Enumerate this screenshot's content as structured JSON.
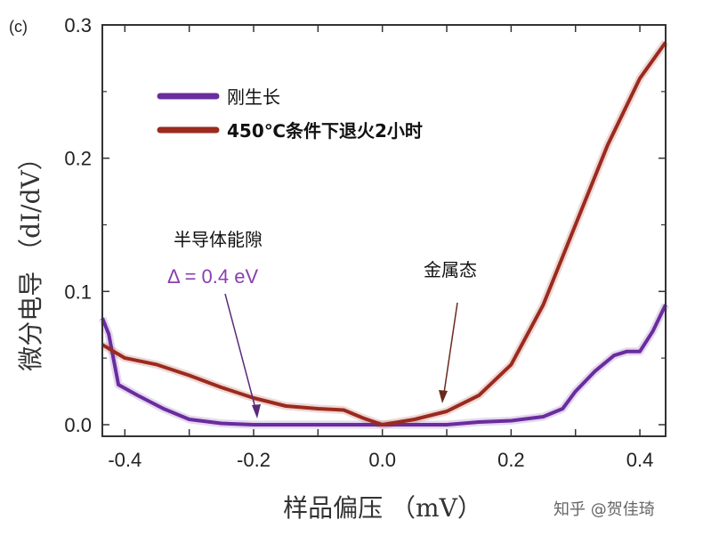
{
  "panel_label": "(c)",
  "watermark": "知乎 @贺佳琦",
  "chart_data": {
    "type": "line",
    "xlabel": "样品偏压 （mV）",
    "ylabel": "微分电导 （dI/dV）",
    "xlim": [
      -0.435,
      0.44
    ],
    "ylim": [
      -0.0087,
      0.3
    ],
    "xticks": [
      "-0.4",
      "-0.2",
      "0.0",
      "0.2",
      "0.4"
    ],
    "xtick_values": [
      -0.4,
      -0.2,
      0.0,
      0.2,
      0.4
    ],
    "yticks": [
      "0.0",
      "0.1",
      "0.2",
      "0.3"
    ],
    "ytick_values": [
      0.0,
      0.1,
      0.2,
      0.3
    ],
    "grid": false,
    "legend_placement": "top-left",
    "series": [
      {
        "name": "刚生长",
        "color": "#6a2c9e",
        "x": [
          -0.435,
          -0.425,
          -0.41,
          -0.38,
          -0.34,
          -0.3,
          -0.25,
          -0.2,
          -0.1,
          0.0,
          0.1,
          0.15,
          0.2,
          0.25,
          0.28,
          0.3,
          0.33,
          0.36,
          0.38,
          0.4,
          0.42,
          0.44
        ],
        "y": [
          0.08,
          0.068,
          0.03,
          0.022,
          0.012,
          0.004,
          0.001,
          0.0,
          0.0,
          0.0,
          0.0,
          0.002,
          0.003,
          0.006,
          0.012,
          0.025,
          0.04,
          0.052,
          0.055,
          0.055,
          0.07,
          0.09
        ]
      },
      {
        "name": "450℃条件下退火2小时",
        "color": "#9b2a1e",
        "x": [
          -0.435,
          -0.4,
          -0.35,
          -0.3,
          -0.25,
          -0.2,
          -0.15,
          -0.1,
          -0.06,
          -0.03,
          0.0,
          0.05,
          0.1,
          0.15,
          0.2,
          0.25,
          0.3,
          0.35,
          0.4,
          0.44
        ],
        "y": [
          0.06,
          0.05,
          0.045,
          0.037,
          0.028,
          0.02,
          0.014,
          0.012,
          0.011,
          0.005,
          0.0,
          0.004,
          0.01,
          0.022,
          0.045,
          0.09,
          0.15,
          0.21,
          0.26,
          0.287
        ]
      }
    ],
    "annotations": [
      {
        "text": "半导体能隙",
        "points_to": [
          -0.2,
          0.0
        ]
      },
      {
        "text": "Δ = 0.4 eV",
        "color": "#8a3fb0"
      },
      {
        "text": "金属态",
        "points_to": [
          0.09,
          0.01
        ]
      }
    ]
  }
}
